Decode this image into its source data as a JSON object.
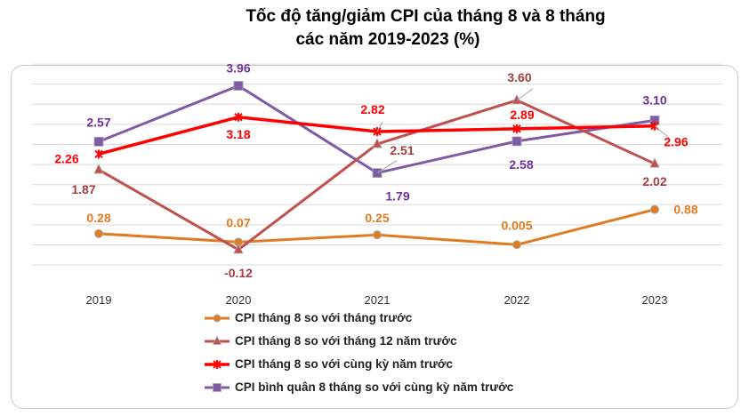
{
  "title_line1": "Tốc độ tăng/giảm CPI của tháng 8 và 8 tháng",
  "title_line2": "các năm 2019-2023 (%)",
  "chart_data": {
    "type": "line",
    "title": "Tốc độ tăng/giảm CPI của tháng 8 và 8 tháng các năm 2019-2023 (%)",
    "categories": [
      "2019",
      "2020",
      "2021",
      "2022",
      "2023"
    ],
    "ylim": [
      -0.5,
      4.5
    ],
    "grid": true,
    "legend_position": "bottom",
    "series": [
      {
        "name": "CPI tháng 8 so với tháng trước",
        "color": "#e07b1f",
        "marker": "circle",
        "values": [
          0.28,
          0.07,
          0.25,
          0.005,
          0.88
        ],
        "labels": [
          "0.28",
          "0.07",
          "0.25",
          "0.005",
          "0.88"
        ]
      },
      {
        "name": "CPI tháng 8 so với tháng 12 năm trước",
        "color": "#c0504d",
        "marker": "triangle",
        "values": [
          1.87,
          -0.12,
          2.51,
          3.6,
          2.02
        ],
        "labels": [
          "1.87",
          "-0.12",
          "2.51",
          "3.60",
          "2.02"
        ]
      },
      {
        "name": "CPI tháng 8 so với cùng kỳ năm trước",
        "color": "#ff0000",
        "marker": "star",
        "values": [
          2.26,
          3.18,
          2.82,
          2.89,
          2.96
        ],
        "labels": [
          "2.26",
          "3.18",
          "2.82",
          "2.89",
          "2.96"
        ]
      },
      {
        "name": "CPI bình quân 8 tháng so với cùng kỳ năm trước",
        "color": "#7f5ba6",
        "marker": "square",
        "values": [
          2.57,
          3.96,
          1.79,
          2.58,
          3.1
        ],
        "labels": [
          "2.57",
          "3.96",
          "1.79",
          "2.58",
          "3.10"
        ]
      }
    ]
  }
}
